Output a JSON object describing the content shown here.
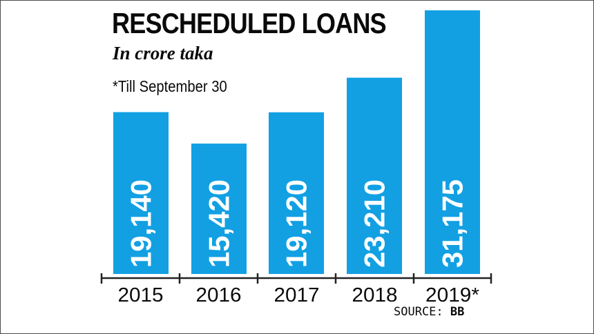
{
  "header": {
    "title": "RESCHEDULED LOANS",
    "subtitle": "In crore taka",
    "note": "*Till September 30"
  },
  "footer": {
    "source_label": "SOURCE:",
    "source_value": "BB"
  },
  "colors": {
    "bar": "#12a0e3",
    "axis": "#222222",
    "label": "#ffffff"
  },
  "chart_data": {
    "type": "bar",
    "title": "RESCHEDULED LOANS",
    "subtitle": "In crore taka",
    "categories": [
      "2015",
      "2016",
      "2017",
      "2018",
      "2019*"
    ],
    "values": [
      19140,
      15420,
      19120,
      23210,
      31175
    ],
    "value_labels": [
      "19,140",
      "15,420",
      "19,120",
      "23,210",
      "31,175"
    ],
    "ylim": [
      0,
      31175
    ],
    "xlabel": "",
    "ylabel": "",
    "grid": false,
    "legend": "none"
  }
}
